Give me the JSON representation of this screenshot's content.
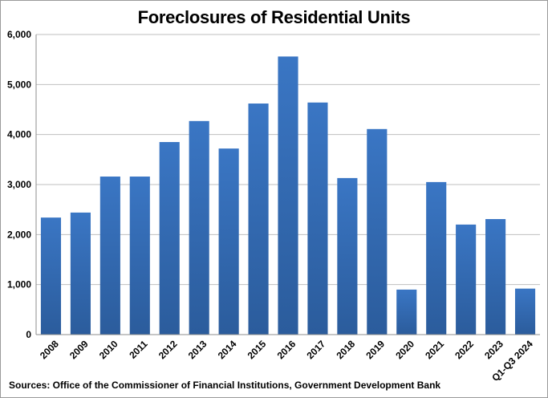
{
  "chart_data": {
    "type": "bar",
    "title": "Foreclosures of Residential Units",
    "categories": [
      "2008",
      "2009",
      "2010",
      "2011",
      "2012",
      "2013",
      "2014",
      "2015",
      "2016",
      "2017",
      "2018",
      "2019",
      "2020",
      "2021",
      "2022",
      "2023",
      "Q1-Q3 2024"
    ],
    "values": [
      2340,
      2440,
      3160,
      3160,
      3850,
      4270,
      3720,
      4620,
      5560,
      4640,
      3130,
      4110,
      900,
      3050,
      2200,
      2310,
      920
    ],
    "ylim": [
      0,
      6000
    ],
    "yticks": [
      "0",
      "1,000",
      "2,000",
      "3,000",
      "4,000",
      "5,000",
      "6,000"
    ],
    "grid": true,
    "bar_color": "#3a76c4",
    "bar_color_dark": "#2b5c9c",
    "source": "Sources: Office of the Commissioner of Financial Institutions, Government Development Bank"
  }
}
